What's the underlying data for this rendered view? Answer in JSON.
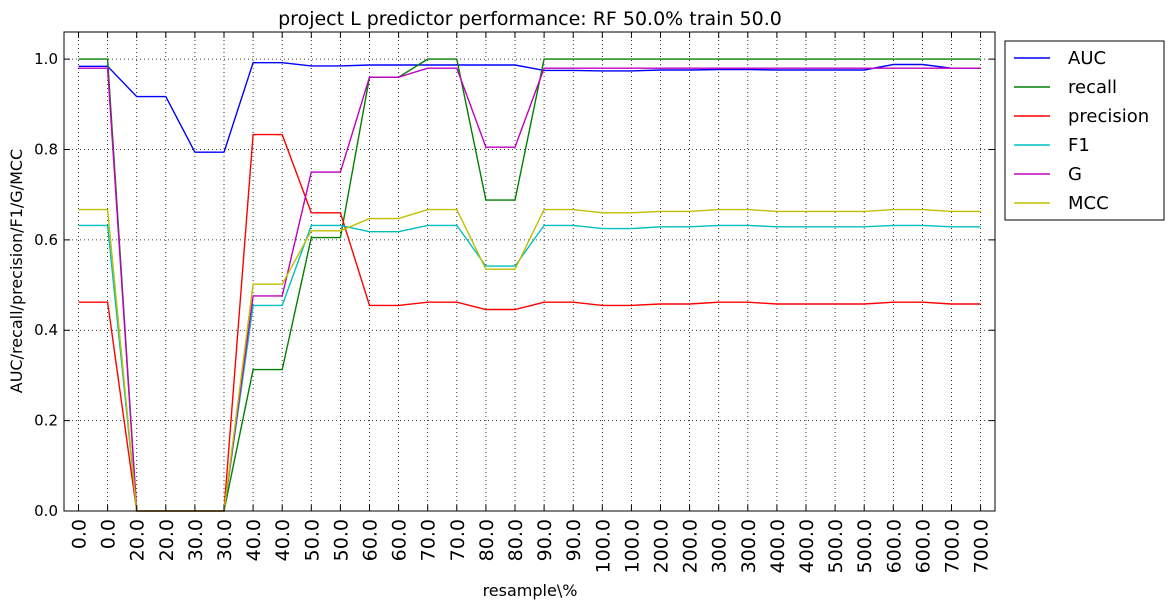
{
  "chart_data": {
    "type": "line",
    "title": "project L predictor performance: RF 50.0% train 50.0",
    "xlabel": "resample\\%",
    "ylabel": "AUC/recall/precision/F1/G/MCC",
    "ylim": [
      0.0,
      1.06
    ],
    "yticks": [
      "0.0",
      "0.2",
      "0.4",
      "0.6",
      "0.8",
      "1.0"
    ],
    "grid": true,
    "legend_position": "outside-top-right",
    "categories": [
      "0.0",
      "0.0",
      "20.0",
      "20.0",
      "30.0",
      "30.0",
      "40.0",
      "40.0",
      "50.0",
      "50.0",
      "60.0",
      "60.0",
      "70.0",
      "70.0",
      "80.0",
      "80.0",
      "90.0",
      "90.0",
      "100.0",
      "100.0",
      "200.0",
      "200.0",
      "300.0",
      "300.0",
      "400.0",
      "400.0",
      "500.0",
      "500.0",
      "600.0",
      "600.0",
      "700.0",
      "700.0"
    ],
    "series": [
      {
        "name": "AUC",
        "color": "#0000ff",
        "values": [
          0.984,
          0.984,
          0.917,
          0.917,
          0.794,
          0.794,
          0.992,
          0.992,
          0.985,
          0.985,
          0.987,
          0.987,
          0.987,
          0.987,
          0.987,
          0.987,
          0.975,
          0.975,
          0.974,
          0.974,
          0.976,
          0.976,
          0.977,
          0.977,
          0.976,
          0.976,
          0.976,
          0.976,
          0.988,
          0.988,
          0.98,
          0.98
        ]
      },
      {
        "name": "recall",
        "color": "#008000",
        "values": [
          1.0,
          1.0,
          0.0,
          0.0,
          0.0,
          0.0,
          0.313,
          0.313,
          0.605,
          0.605,
          0.96,
          0.96,
          1.0,
          1.0,
          0.688,
          0.688,
          1.0,
          1.0,
          1.0,
          1.0,
          1.0,
          1.0,
          1.0,
          1.0,
          1.0,
          1.0,
          1.0,
          1.0,
          1.0,
          1.0,
          1.0,
          1.0
        ]
      },
      {
        "name": "precision",
        "color": "#ff0000",
        "values": [
          0.462,
          0.462,
          0.0,
          0.0,
          0.0,
          0.0,
          0.833,
          0.833,
          0.66,
          0.66,
          0.455,
          0.455,
          0.462,
          0.462,
          0.446,
          0.446,
          0.462,
          0.462,
          0.455,
          0.455,
          0.458,
          0.458,
          0.462,
          0.462,
          0.458,
          0.458,
          0.458,
          0.458,
          0.462,
          0.462,
          0.458,
          0.458
        ]
      },
      {
        "name": "F1",
        "color": "#00bfbf",
        "values": [
          0.632,
          0.632,
          0.0,
          0.0,
          0.0,
          0.0,
          0.455,
          0.455,
          0.632,
          0.632,
          0.618,
          0.618,
          0.632,
          0.632,
          0.542,
          0.542,
          0.632,
          0.632,
          0.625,
          0.625,
          0.629,
          0.629,
          0.632,
          0.632,
          0.629,
          0.629,
          0.629,
          0.629,
          0.632,
          0.632,
          0.629,
          0.629
        ]
      },
      {
        "name": "G",
        "color": "#bf00bf",
        "values": [
          0.98,
          0.98,
          0.0,
          0.0,
          0.0,
          0.0,
          0.476,
          0.476,
          0.75,
          0.75,
          0.96,
          0.96,
          0.98,
          0.98,
          0.805,
          0.805,
          0.98,
          0.98,
          0.98,
          0.98,
          0.98,
          0.98,
          0.98,
          0.98,
          0.98,
          0.98,
          0.98,
          0.98,
          0.98,
          0.98,
          0.98,
          0.98
        ]
      },
      {
        "name": "MCC",
        "color": "#bfbf00",
        "values": [
          0.667,
          0.667,
          0.0,
          0.0,
          0.0,
          0.0,
          0.502,
          0.502,
          0.62,
          0.62,
          0.647,
          0.647,
          0.667,
          0.667,
          0.535,
          0.535,
          0.667,
          0.667,
          0.66,
          0.66,
          0.663,
          0.663,
          0.667,
          0.667,
          0.663,
          0.663,
          0.663,
          0.663,
          0.667,
          0.667,
          0.663,
          0.663
        ]
      }
    ]
  }
}
